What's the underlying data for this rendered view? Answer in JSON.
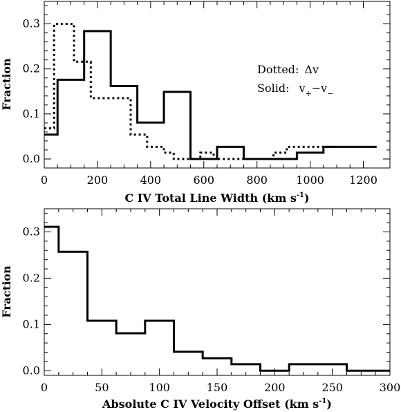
{
  "chart_data": [
    {
      "type": "histogram",
      "xlabel": "C IV Total Line Width (km s",
      "xlabel_sup": "-1",
      "xlabel_close": ")",
      "ylabel": "Fraction",
      "xlim": [
        0,
        1300
      ],
      "ylim": [
        -0.02,
        0.35
      ],
      "xticks": [
        {
          "value": 0,
          "label": "0"
        },
        {
          "value": 200,
          "label": "200"
        },
        {
          "value": 400,
          "label": "400"
        },
        {
          "value": 600,
          "label": "600"
        },
        {
          "value": 800,
          "label": "800"
        },
        {
          "value": 1000,
          "label": "1000"
        },
        {
          "value": 1200,
          "label": "1200"
        }
      ],
      "yticks": [
        {
          "value": 0.0,
          "label": "0.0"
        },
        {
          "value": 0.1,
          "label": "0.1"
        },
        {
          "value": 0.2,
          "label": "0.2"
        },
        {
          "value": 0.3,
          "label": "0.3"
        }
      ],
      "annotations": {
        "dotted_label": "Dotted:",
        "dotted_symbol": "Δv",
        "solid_label": "Solid:",
        "solid_v": "v",
        "solid_plus": "+",
        "solid_minus_op": "−v",
        "solid_minus": "−"
      },
      "series": [
        {
          "style": "solid",
          "edges": [
            0,
            50,
            150,
            250,
            350,
            450,
            550,
            650,
            750,
            850,
            950,
            1050,
            1150,
            1250
          ],
          "values": [
            0.054,
            0.176,
            0.284,
            0.162,
            0.081,
            0.149,
            0.0,
            0.027,
            0.0,
            0.0,
            0.014,
            0.027,
            0.027
          ]
        },
        {
          "style": "dotted",
          "edges": [
            0,
            37,
            112,
            150,
            175,
            325,
            387,
            450,
            487,
            587,
            637,
            862,
            912,
            1087
          ],
          "values": [
            0.068,
            0.3,
            0.216,
            0.216,
            0.135,
            0.054,
            0.027,
            0.014,
            0.0,
            0.014,
            0.0,
            0.014,
            0.027
          ]
        }
      ]
    },
    {
      "type": "histogram",
      "xlabel": "Absolute C IV Velocity Offset (km s",
      "xlabel_sup": "-1",
      "xlabel_close": ")",
      "ylabel": "Fraction",
      "xlim": [
        0,
        300
      ],
      "ylim": [
        -0.01,
        0.35
      ],
      "xticks": [
        {
          "value": 0,
          "label": "0"
        },
        {
          "value": 50,
          "label": "50"
        },
        {
          "value": 100,
          "label": "100"
        },
        {
          "value": 150,
          "label": "150"
        },
        {
          "value": 200,
          "label": "200"
        },
        {
          "value": 250,
          "label": "250"
        },
        {
          "value": 300,
          "label": "300"
        }
      ],
      "yticks": [
        {
          "value": 0.0,
          "label": "0.0"
        },
        {
          "value": 0.1,
          "label": "0.1"
        },
        {
          "value": 0.2,
          "label": "0.2"
        },
        {
          "value": 0.3,
          "label": "0.3"
        }
      ],
      "series": [
        {
          "style": "solid",
          "edges": [
            0,
            12.5,
            37.5,
            62.5,
            87.5,
            112.5,
            137.5,
            162.5,
            187.5,
            212.5,
            237.5,
            262.5,
            287.5,
            300
          ],
          "values": [
            0.311,
            0.257,
            0.108,
            0.081,
            0.108,
            0.041,
            0.027,
            0.014,
            0.0,
            0.014,
            0.014,
            0.0,
            0.0
          ]
        }
      ]
    }
  ]
}
